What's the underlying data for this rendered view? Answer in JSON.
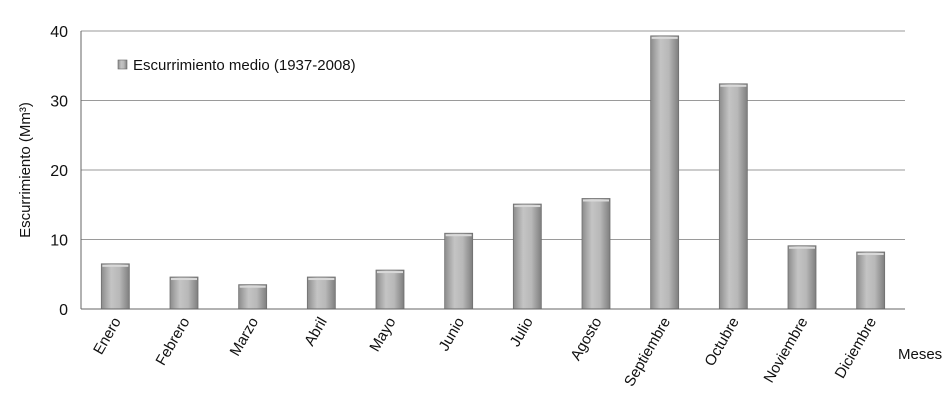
{
  "chart_data": {
    "type": "bar",
    "categories": [
      "Enero",
      "Febrero",
      "Marzo",
      "Abril",
      "Mayo",
      "Junio",
      "Julio",
      "Agosto",
      "Septiembre",
      "Octubre",
      "Noviembre",
      "Diciembre"
    ],
    "series": [
      {
        "name": "Escurrimiento medio (1937-2008)",
        "values": [
          6.5,
          4.6,
          3.5,
          4.6,
          5.6,
          10.9,
          15.1,
          15.9,
          39.3,
          32.4,
          9.1,
          8.2
        ]
      }
    ],
    "ylabel": "Escurrimiento (Mm³)",
    "xlabel": "Meses",
    "ylim": [
      0,
      40
    ],
    "yticks": [
      0,
      10,
      20,
      30,
      40
    ],
    "grid": "horizontal",
    "legend_position": "top-left",
    "bar_color": "#a8a8a8"
  }
}
